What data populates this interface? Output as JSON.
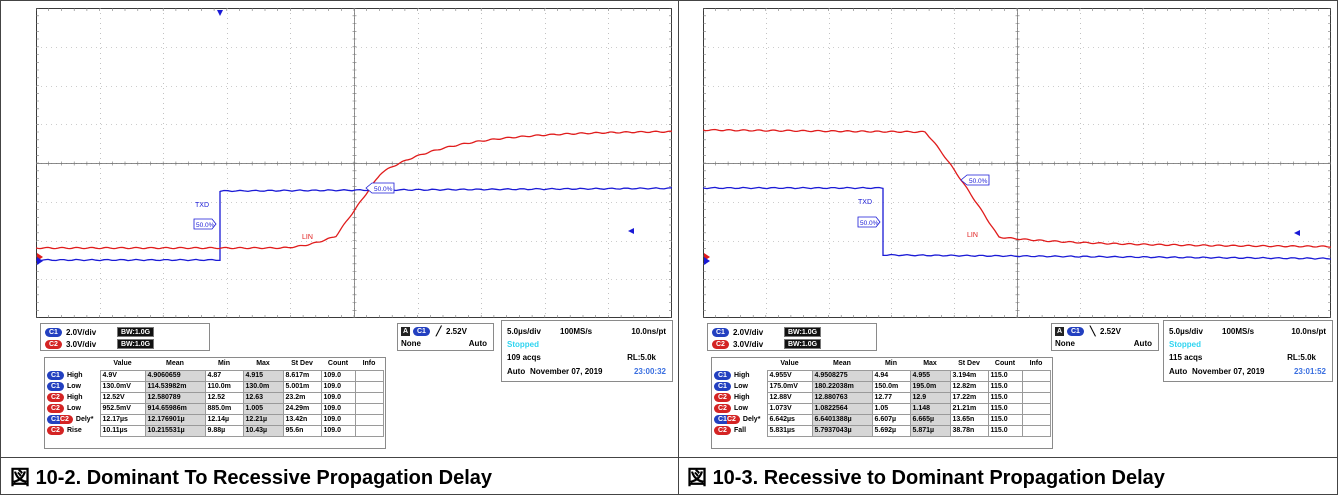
{
  "colors": {
    "ch1": "#1a1ad6",
    "ch2": "#e01c1c",
    "grid": "#3a3a3a",
    "stopped": "#2fd4f0",
    "clock": "#3a6fe0"
  },
  "figures": [
    {
      "caption_prefix": "図",
      "caption_text": "10-2. Dominant To Recessive Propagation Delay",
      "scope": {
        "labels": {
          "txd": "TXD",
          "lin": "LIN",
          "marker_txd": "50.0%",
          "marker_lin": "50.0%"
        }
      },
      "channels": [
        {
          "badge": "C1",
          "scale": "2.0V/div",
          "bw": "BW:1.0G"
        },
        {
          "badge": "C2",
          "scale": "3.0V/div",
          "bw": "BW:1.0G"
        }
      ],
      "trigger": {
        "source": "C1",
        "slope": "rising-edge-icon",
        "slope_glyph": "╱",
        "level": "2.52V",
        "coupling": "None",
        "mode": "Auto",
        "a": "A"
      },
      "timebase": {
        "div": "5.0µs/div",
        "rate": "100MS/s",
        "res": "10.0ns/pt",
        "state": "Stopped",
        "acqs": "109 acqs",
        "rl": "RL:5.0k",
        "mode": "Auto",
        "date": "November 07, 2019",
        "time": "23:00:32"
      },
      "measurements": {
        "headers": [
          "Value",
          "Mean",
          "Min",
          "Max",
          "St Dev",
          "Count",
          "Info"
        ],
        "rows": [
          {
            "badge": "C1",
            "name": "High",
            "value": "4.9V",
            "mean": "4.9060659",
            "min": "4.87",
            "max": "4.915",
            "stdev": "8.617m",
            "count": "109.0",
            "info": ""
          },
          {
            "badge": "C1",
            "name": "Low",
            "value": "130.0mV",
            "mean": "114.53982m",
            "min": "110.0m",
            "max": "130.0m",
            "stdev": "5.001m",
            "count": "109.0",
            "info": ""
          },
          {
            "badge": "C2",
            "name": "High",
            "value": "12.52V",
            "mean": "12.580789",
            "min": "12.52",
            "max": "12.63",
            "stdev": "23.2m",
            "count": "109.0",
            "info": ""
          },
          {
            "badge": "C2",
            "name": "Low",
            "value": "952.5mV",
            "mean": "914.65986m",
            "min": "885.0m",
            "max": "1.005",
            "stdev": "24.29m",
            "count": "109.0",
            "info": ""
          },
          {
            "badge": "C1 C2",
            "name": "Dely*",
            "value": "12.17µs",
            "mean": "12.176901µ",
            "min": "12.14µ",
            "max": "12.21µ",
            "stdev": "13.42n",
            "count": "109.0",
            "info": ""
          },
          {
            "badge": "C2",
            "name": "Rise",
            "value": "10.11µs",
            "mean": "10.215531µ",
            "min": "9.88µ",
            "max": "10.43µ",
            "stdev": "95.6n",
            "count": "109.0",
            "info": ""
          }
        ]
      }
    },
    {
      "caption_prefix": "図",
      "caption_text": "10-3. Recessive to Dominant Propagation Delay",
      "scope": {
        "labels": {
          "txd": "TXD",
          "lin": "LIN",
          "marker_txd": "50.0%",
          "marker_lin": "50.0%"
        }
      },
      "channels": [
        {
          "badge": "C1",
          "scale": "2.0V/div",
          "bw": "BW:1.0G"
        },
        {
          "badge": "C2",
          "scale": "3.0V/div",
          "bw": "BW:1.0G"
        }
      ],
      "trigger": {
        "source": "C1",
        "slope": "falling-edge-icon",
        "slope_glyph": "╲",
        "level": "2.52V",
        "coupling": "None",
        "mode": "Auto",
        "a": "A"
      },
      "timebase": {
        "div": "5.0µs/div",
        "rate": "100MS/s",
        "res": "10.0ns/pt",
        "state": "Stopped",
        "acqs": "115 acqs",
        "rl": "RL:5.0k",
        "mode": "Auto",
        "date": "November 07, 2019",
        "time": "23:01:52"
      },
      "measurements": {
        "headers": [
          "Value",
          "Mean",
          "Min",
          "Max",
          "St Dev",
          "Count",
          "Info"
        ],
        "rows": [
          {
            "badge": "C1",
            "name": "High",
            "value": "4.955V",
            "mean": "4.9508275",
            "min": "4.94",
            "max": "4.955",
            "stdev": "3.194m",
            "count": "115.0",
            "info": ""
          },
          {
            "badge": "C1",
            "name": "Low",
            "value": "175.0mV",
            "mean": "180.22038m",
            "min": "150.0m",
            "max": "195.0m",
            "stdev": "12.82m",
            "count": "115.0",
            "info": ""
          },
          {
            "badge": "C2",
            "name": "High",
            "value": "12.88V",
            "mean": "12.880763",
            "min": "12.77",
            "max": "12.9",
            "stdev": "17.22m",
            "count": "115.0",
            "info": ""
          },
          {
            "badge": "C2",
            "name": "Low",
            "value": "1.073V",
            "mean": "1.0822564",
            "min": "1.05",
            "max": "1.148",
            "stdev": "21.21m",
            "count": "115.0",
            "info": ""
          },
          {
            "badge": "C1 C2",
            "name": "Dely*",
            "value": "6.642µs",
            "mean": "6.6401388µ",
            "min": "6.607µ",
            "max": "6.665µ",
            "stdev": "13.65n",
            "count": "115.0",
            "info": ""
          },
          {
            "badge": "C2",
            "name": "Fall",
            "value": "5.831µs",
            "mean": "5.7937043µ",
            "min": "5.692µ",
            "max": "5.871µ",
            "stdev": "38.78n",
            "count": "115.0",
            "info": ""
          }
        ]
      }
    }
  ]
}
